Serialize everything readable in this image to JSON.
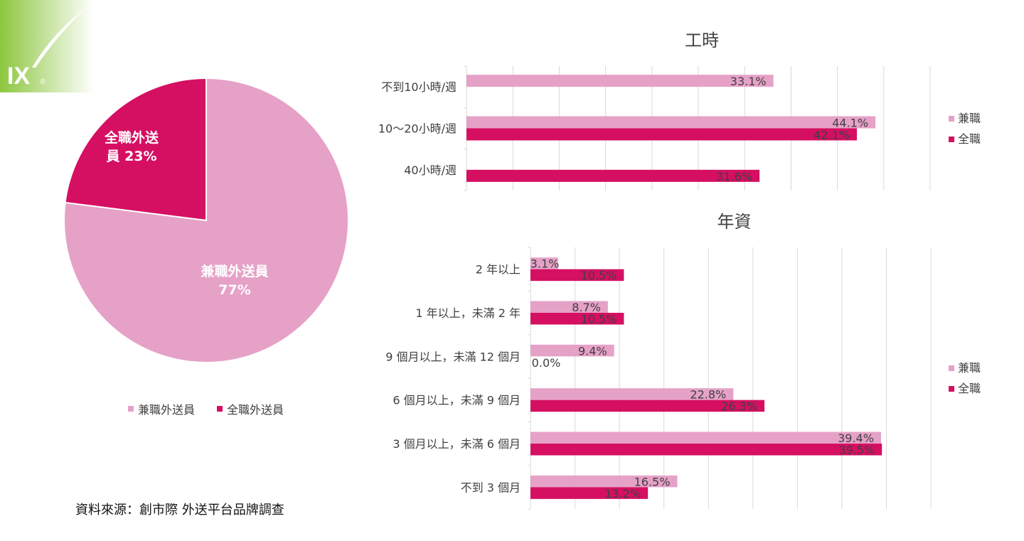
{
  "logo": {
    "text": "IX",
    "mark": "®",
    "colors": {
      "green": "#8DC63F"
    }
  },
  "colors": {
    "part_time": "#E6A1C7",
    "full_time": "#D50F62",
    "grid": "#D9D9D9",
    "label": "#404040"
  },
  "source": "資料來源：創市際 外送平台品牌調查",
  "chart_data": [
    {
      "type": "pie",
      "slices": [
        {
          "name": "兼職外送員",
          "value": 77,
          "label": "兼職外送員\n77%"
        },
        {
          "name": "全職外送員",
          "value": 23,
          "label": "全職外送\n員 23%"
        }
      ],
      "legend": [
        "兼職外送員",
        "全職外送員"
      ],
      "legend_position": "bottom"
    },
    {
      "type": "bar",
      "orientation": "horizontal",
      "title": "工時",
      "categories": [
        "不到10小時/週",
        "10～20小時/週",
        "40小時/週"
      ],
      "series": [
        {
          "name": "兼職",
          "values": [
            33.1,
            44.1,
            null
          ]
        },
        {
          "name": "全職",
          "values": [
            null,
            42.1,
            31.6
          ]
        }
      ],
      "xlim": [
        0,
        50
      ],
      "grid_step": 5,
      "grid": true,
      "legend_position": "right"
    },
    {
      "type": "bar",
      "orientation": "horizontal",
      "title": "年資",
      "categories": [
        "2 年以上",
        "1 年以上，未滿 2 年",
        "9 個月以上，未滿 12 個月",
        "6 個月以上，未滿 9 個月",
        "3 個月以上，未滿 6 個月",
        "不到 3 個月"
      ],
      "series": [
        {
          "name": "兼職",
          "values": [
            3.1,
            8.7,
            9.4,
            22.8,
            39.4,
            16.5
          ]
        },
        {
          "name": "全職",
          "values": [
            10.5,
            10.5,
            0.0,
            26.3,
            39.5,
            13.2
          ]
        }
      ],
      "xlim": [
        0,
        45
      ],
      "grid_step": 5,
      "grid": true,
      "legend_position": "right"
    }
  ]
}
